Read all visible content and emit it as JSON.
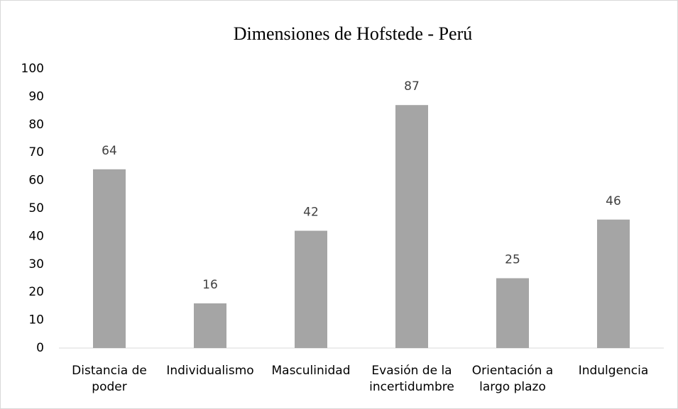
{
  "chart_data": {
    "type": "bar",
    "title": "Dimensiones de Hofstede - Perú",
    "categories": [
      "Distancia de poder",
      "Individualismo",
      "Masculinidad",
      "Evasión de la incertidumbre",
      "Orientación a largo plazo",
      "Indulgencia"
    ],
    "values": [
      64,
      16,
      42,
      87,
      25,
      46
    ],
    "color": "#a5a5a5",
    "ylim": [
      0,
      100
    ],
    "yticks": [
      0,
      10,
      20,
      30,
      40,
      50,
      60,
      70,
      80,
      90,
      100
    ],
    "grid": false
  }
}
